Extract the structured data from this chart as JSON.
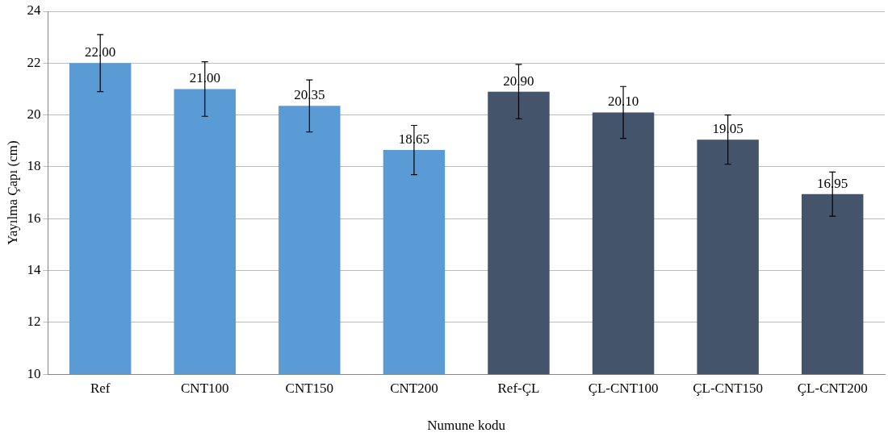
{
  "chart_data": {
    "type": "bar",
    "xlabel": "Numune kodu",
    "ylabel": "Yayılma Çapı (cm)",
    "categories": [
      "Ref",
      "CNT100",
      "CNT150",
      "CNT200",
      "Ref-ÇL",
      "ÇL-CNT100",
      "ÇL-CNT150",
      "ÇL-CNT200"
    ],
    "values": [
      22.0,
      21.0,
      20.35,
      18.65,
      20.9,
      20.1,
      19.05,
      16.95
    ],
    "value_labels": [
      "22.00",
      "21.00",
      "20.35",
      "18.65",
      "20.90",
      "20.10",
      "19.05",
      "16.95"
    ],
    "errors": [
      1.1,
      1.05,
      1.0,
      0.95,
      1.05,
      1.0,
      0.95,
      0.85
    ],
    "colors": [
      "#5b9bd5",
      "#5b9bd5",
      "#5b9bd5",
      "#5b9bd5",
      "#44546a",
      "#44546a",
      "#44546a",
      "#44546a"
    ],
    "ylim": [
      10,
      24
    ],
    "yticks": [
      10,
      12,
      14,
      16,
      18,
      20,
      22,
      24
    ],
    "grid": "y",
    "legend": false
  }
}
